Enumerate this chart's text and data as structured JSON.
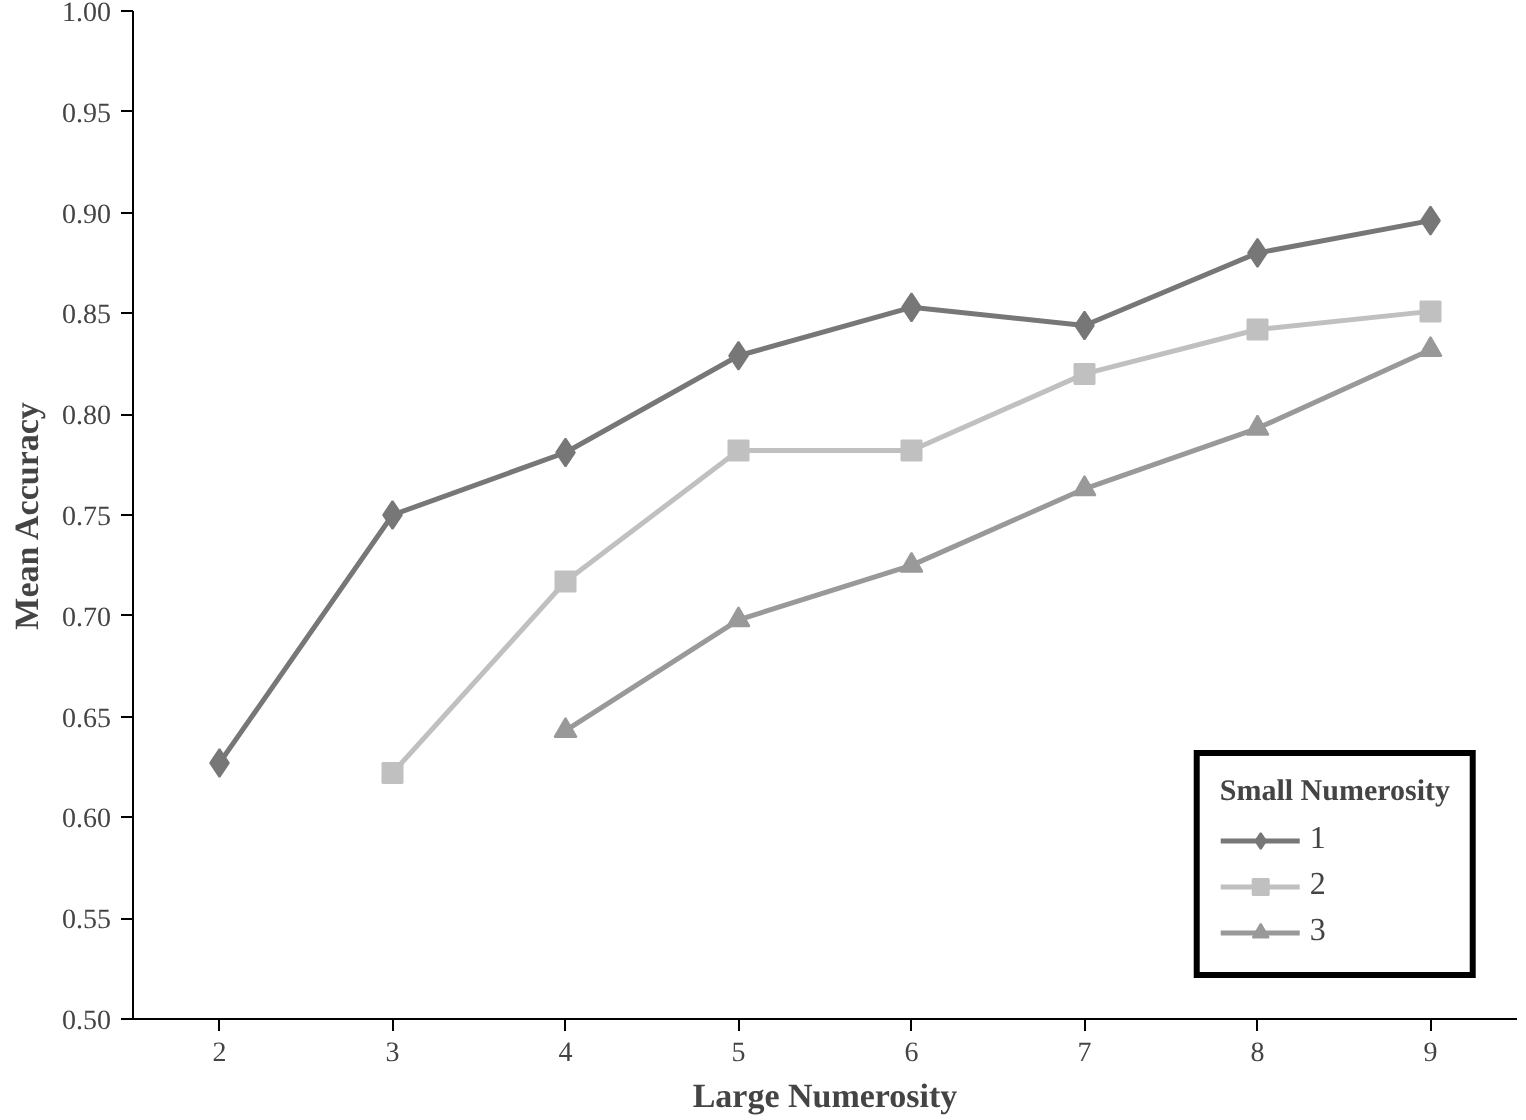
{
  "chart_data": {
    "type": "line",
    "xlabel": "Large Numerosity",
    "ylabel": "Mean Accuracy",
    "legend_title": "Small Numerosity",
    "categories": [
      "2",
      "3",
      "4",
      "5",
      "6",
      "7",
      "8",
      "9"
    ],
    "series": [
      {
        "name": "1",
        "color": "#777777",
        "marker": "diamond",
        "values": [
          0.627,
          0.75,
          0.781,
          0.829,
          0.853,
          0.844,
          0.88,
          0.896
        ]
      },
      {
        "name": "2",
        "color": "#c0c0c0",
        "marker": "square",
        "values": [
          null,
          0.622,
          0.717,
          0.782,
          0.782,
          0.82,
          0.842,
          0.851
        ]
      },
      {
        "name": "3",
        "color": "#999999",
        "marker": "triangle",
        "values": [
          null,
          null,
          0.643,
          0.698,
          0.725,
          0.763,
          0.793,
          0.832
        ]
      }
    ],
    "ylim": [
      0.5,
      1.0
    ],
    "yticks": [
      {
        "value": 0.5,
        "label": "0.50"
      },
      {
        "value": 0.55,
        "label": "0.55"
      },
      {
        "value": 0.6,
        "label": "0.60"
      },
      {
        "value": 0.65,
        "label": "0.65"
      },
      {
        "value": 0.7,
        "label": "0.70"
      },
      {
        "value": 0.75,
        "label": "0.75"
      },
      {
        "value": 0.8,
        "label": "0.80"
      },
      {
        "value": 0.85,
        "label": "0.85"
      },
      {
        "value": 0.9,
        "label": "0.90"
      },
      {
        "value": 0.95,
        "label": "0.95"
      },
      {
        "value": 1.0,
        "label": "1.00"
      }
    ],
    "grid": false,
    "legend": "bottom right",
    "line_style": "solid"
  }
}
